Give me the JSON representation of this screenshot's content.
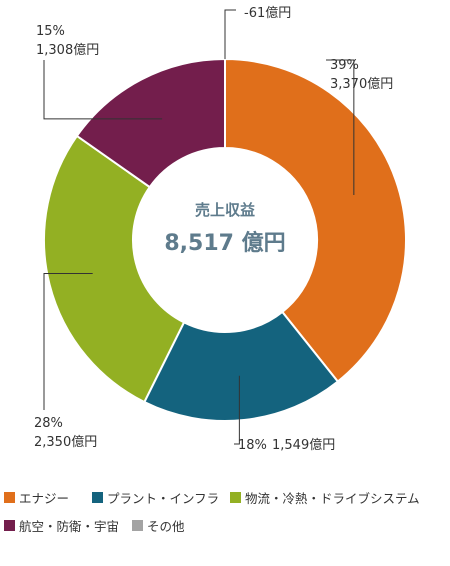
{
  "chart_data": {
    "type": "pie",
    "donut": true,
    "center_title": "売上収益",
    "center_value": "8,517 億円",
    "slices": [
      {
        "name": "エナジー",
        "value": 3370,
        "percent_label": "39%",
        "value_label": "3,370億円",
        "color": "#e06f1b"
      },
      {
        "name": "プラント・インフラ",
        "value": 1549,
        "percent_label": "18%",
        "value_label": "1,549億円",
        "color": "#14637e"
      },
      {
        "name": "物流・冷熱・ドライブシステム",
        "value": 2350,
        "percent_label": "28%",
        "value_label": "2,350億円",
        "color": "#93b023"
      },
      {
        "name": "航空・防衛・宇宙",
        "value": 1308,
        "percent_label": "15%",
        "value_label": "1,308億円",
        "color": "#731e4c"
      },
      {
        "name": "その他",
        "value": -61,
        "percent_label": "",
        "value_label": "-61億円",
        "color": "#a3a3a3"
      }
    ],
    "legend_placement": "bottom"
  }
}
